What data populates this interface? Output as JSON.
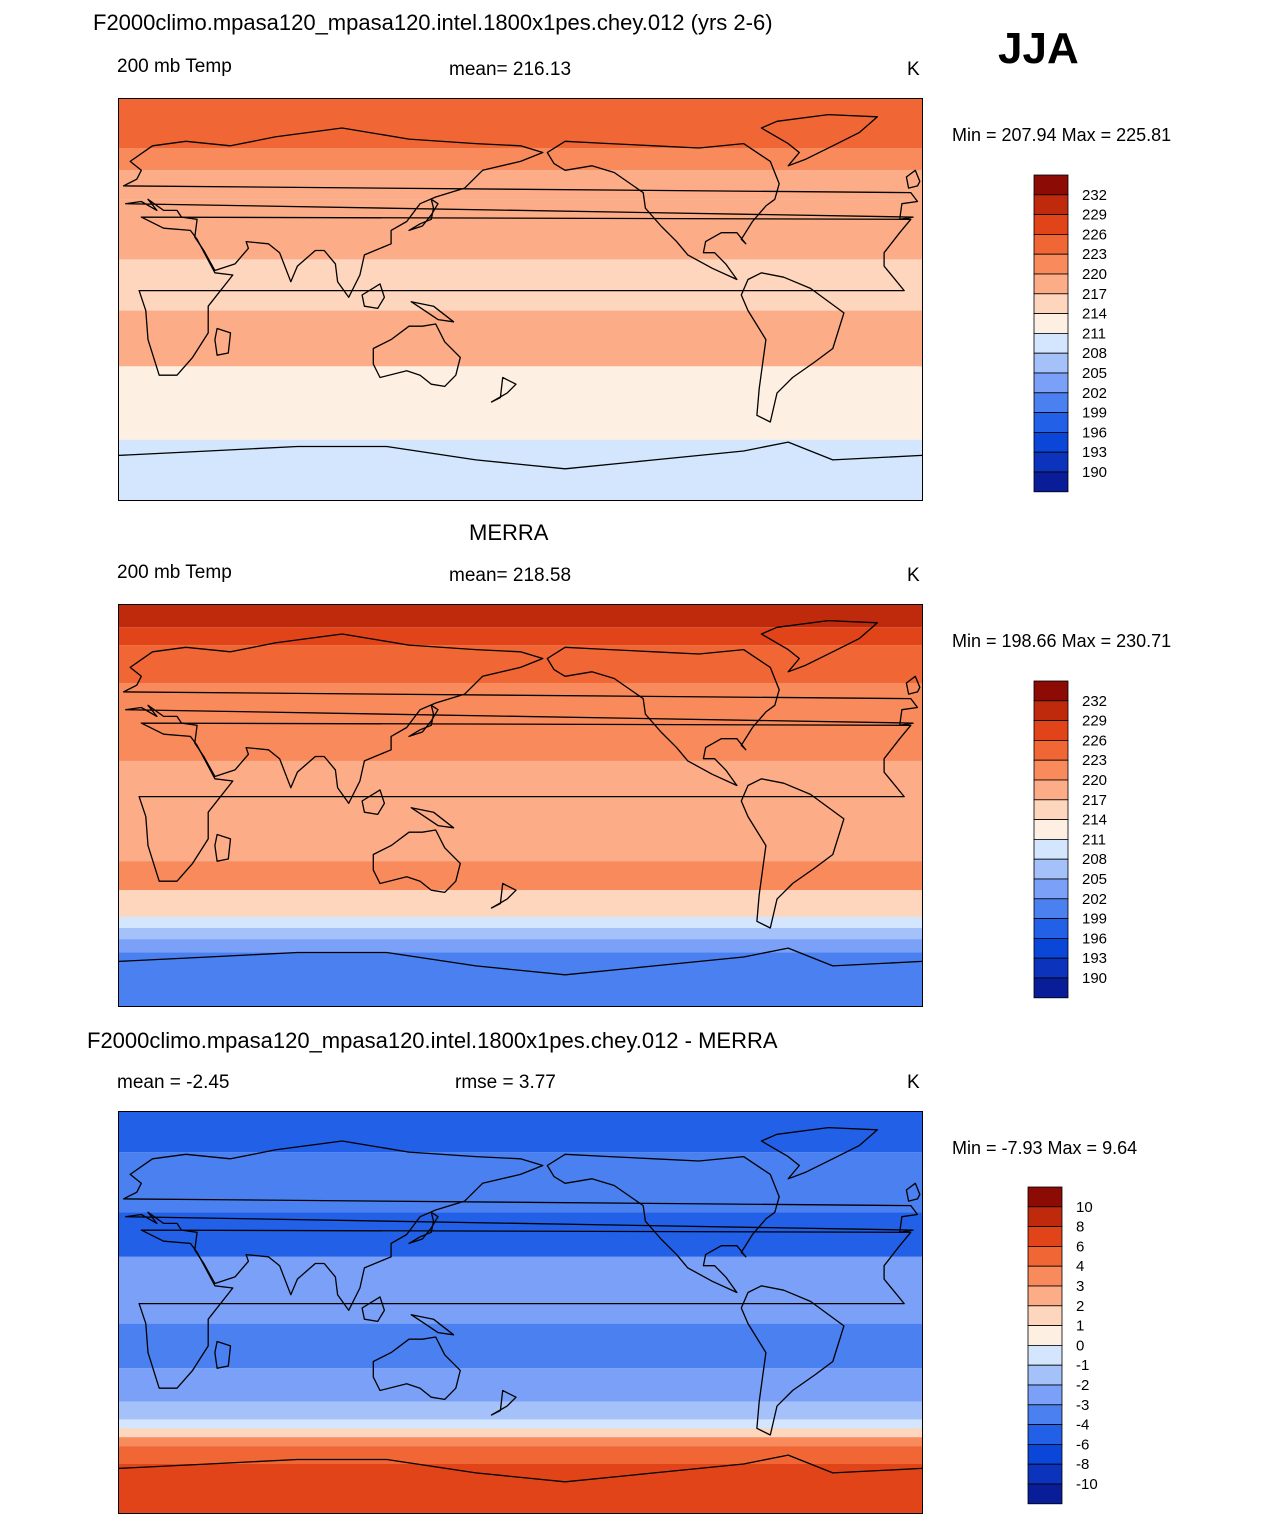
{
  "season": "JJA",
  "colors": {
    "temp_scale": [
      "#000080",
      "#0a1d99",
      "#0b33bb",
      "#0a46d8",
      "#2260e8",
      "#4b80f0",
      "#7aa1f7",
      "#a4c1fa",
      "#d3e6fd",
      "#fdf0e2",
      "#fdd6bd",
      "#fcac87",
      "#f88a5c",
      "#f06634",
      "#e04418",
      "#bf2a0c",
      "#8c0b04"
    ],
    "diff_scale": [
      "#000080",
      "#0a1d99",
      "#0b33bb",
      "#0a46d8",
      "#2260e8",
      "#4b80f0",
      "#7aa1f7",
      "#a4c1fa",
      "#d3e6fd",
      "#fdf0e2",
      "#fdd6bd",
      "#fcac87",
      "#f88a5c",
      "#f06634",
      "#e04418",
      "#bf2a0c",
      "#8c0b04"
    ]
  },
  "panels": [
    {
      "title": "F2000climo.mpasa120_mpasa120.intel.1800x1pes.chey.012 (yrs 2-6)",
      "left": "200 mb Temp",
      "center": "mean= 216.13",
      "units": "K",
      "minmax": "Min = 207.94 Max = 225.81",
      "colorbar_labels": [
        "232",
        "229",
        "226",
        "223",
        "220",
        "217",
        "214",
        "211",
        "208",
        "205",
        "202",
        "199",
        "196",
        "193",
        "190"
      ],
      "bands": [
        {
          "lat_top": 90,
          "lat_bottom": 68,
          "level": 13
        },
        {
          "lat_top": 68,
          "lat_bottom": 58,
          "level": 12
        },
        {
          "lat_top": 58,
          "lat_bottom": 45,
          "level": 11
        },
        {
          "lat_top": 45,
          "lat_bottom": 18,
          "level": 11
        },
        {
          "lat_top": 18,
          "lat_bottom": -5,
          "level": 10
        },
        {
          "lat_top": -5,
          "lat_bottom": -30,
          "level": 11
        },
        {
          "lat_top": -30,
          "lat_bottom": -55,
          "level": 9
        },
        {
          "lat_top": -55,
          "lat_bottom": -63,
          "level": 9
        },
        {
          "lat_top": -63,
          "lat_bottom": -90,
          "level": 8
        }
      ]
    },
    {
      "title": "MERRA",
      "left": "200 mb Temp",
      "center": "mean= 218.58",
      "units": "K",
      "minmax": "Min = 198.66 Max = 230.71",
      "colorbar_labels": [
        "232",
        "229",
        "226",
        "223",
        "220",
        "217",
        "214",
        "211",
        "208",
        "205",
        "202",
        "199",
        "196",
        "193",
        "190"
      ],
      "bands": [
        {
          "lat_top": 90,
          "lat_bottom": 80,
          "level": 15
        },
        {
          "lat_top": 80,
          "lat_bottom": 72,
          "level": 14
        },
        {
          "lat_top": 72,
          "lat_bottom": 55,
          "level": 13
        },
        {
          "lat_top": 55,
          "lat_bottom": 20,
          "level": 12
        },
        {
          "lat_top": 20,
          "lat_bottom": -25,
          "level": 11
        },
        {
          "lat_top": -25,
          "lat_bottom": -38,
          "level": 12
        },
        {
          "lat_top": -38,
          "lat_bottom": -50,
          "level": 10
        },
        {
          "lat_top": -50,
          "lat_bottom": -55,
          "level": 8
        },
        {
          "lat_top": -55,
          "lat_bottom": -60,
          "level": 7
        },
        {
          "lat_top": -60,
          "lat_bottom": -66,
          "level": 6
        },
        {
          "lat_top": -66,
          "lat_bottom": -90,
          "level": 5
        }
      ]
    },
    {
      "title": "F2000climo.mpasa120_mpasa120.intel.1800x1pes.chey.012 - MERRA",
      "left": "mean =  -2.45",
      "center": "rmse =   3.77",
      "units": "K",
      "minmax": "Min =  -7.93 Max =    9.64",
      "colorbar_labels": [
        "10",
        "8",
        "6",
        "4",
        "3",
        "2",
        "1",
        "0",
        "-1",
        "-2",
        "-3",
        "-4",
        "-6",
        "-8",
        "-10"
      ],
      "bands": [
        {
          "lat_top": 90,
          "lat_bottom": 72,
          "level": 4
        },
        {
          "lat_top": 72,
          "lat_bottom": 45,
          "level": 5
        },
        {
          "lat_top": 45,
          "lat_bottom": 25,
          "level": 4
        },
        {
          "lat_top": 25,
          "lat_bottom": -5,
          "level": 6
        },
        {
          "lat_top": -5,
          "lat_bottom": -25,
          "level": 5
        },
        {
          "lat_top": -25,
          "lat_bottom": -40,
          "level": 6
        },
        {
          "lat_top": -40,
          "lat_bottom": -48,
          "level": 7
        },
        {
          "lat_top": -48,
          "lat_bottom": -52,
          "level": 8
        },
        {
          "lat_top": -52,
          "lat_bottom": -56,
          "level": 10
        },
        {
          "lat_top": -56,
          "lat_bottom": -60,
          "level": 12
        },
        {
          "lat_top": -60,
          "lat_bottom": -68,
          "level": 13
        },
        {
          "lat_top": -68,
          "lat_bottom": -90,
          "level": 14
        }
      ]
    }
  ]
}
